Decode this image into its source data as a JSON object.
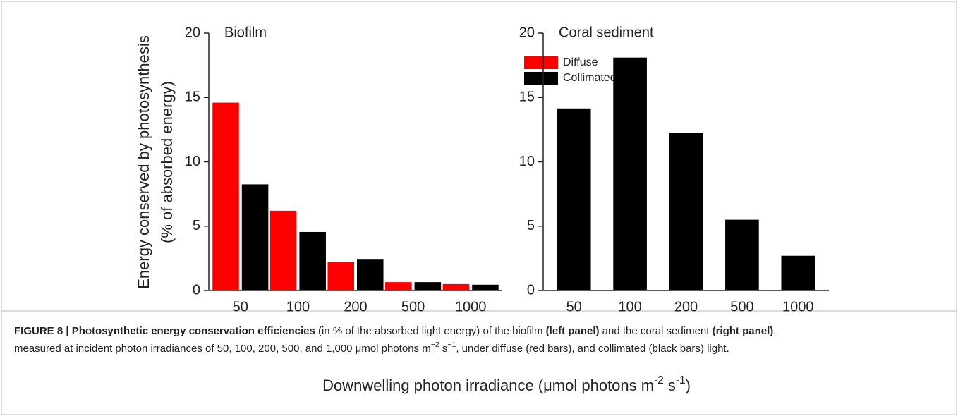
{
  "chart_data": [
    {
      "type": "bar",
      "title": "Biofilm",
      "ylabel": [
        "Energy conserved by photosynthesis",
        "(% of absorbed energy)"
      ],
      "categories": [
        "50",
        "100",
        "200",
        "500",
        "1000"
      ],
      "series": [
        {
          "name": "Diffuse",
          "color": "#ff0000",
          "values": [
            14.6,
            6.2,
            2.2,
            0.65,
            0.5
          ]
        },
        {
          "name": "Collimated",
          "color": "#000000",
          "values": [
            8.25,
            4.55,
            2.4,
            0.65,
            0.45
          ]
        }
      ],
      "ylim": [
        0,
        20
      ],
      "yticks": [
        0,
        5,
        10,
        15,
        20
      ],
      "legend": "upper right"
    },
    {
      "type": "bar",
      "title": "Coral sediment",
      "categories": [
        "50",
        "100",
        "200",
        "500",
        "1000"
      ],
      "series": [
        {
          "color": "#000000",
          "values": [
            14.15,
            18.1,
            12.25,
            5.5,
            2.7
          ]
        }
      ],
      "ylim": [
        0,
        20
      ],
      "yticks": [
        0,
        5,
        10,
        15,
        20
      ]
    }
  ],
  "xlabel": [
    {
      "text": "Downwelling photon irradiance (μmol photons m"
    },
    {
      "text": "-2",
      "sup": true
    },
    {
      "text": " s"
    },
    {
      "text": "-1",
      "sup": true
    },
    {
      "text": ")"
    }
  ],
  "caption": [
    [
      {
        "text": "FIGURE 8 | Photosynthetic energy conservation efficiencies",
        "bold": true
      },
      {
        "text": " (in % of the absorbed light energy) of the biofilm "
      },
      {
        "text": "(left panel)",
        "bold": true
      },
      {
        "text": " and the coral sediment "
      },
      {
        "text": "(right panel)",
        "bold": true
      },
      {
        "text": ","
      }
    ],
    [
      {
        "text": "measured at incident photon irradiances of 50, 100, 200, 500, and 1,000 μmol photons m"
      },
      {
        "text": "−2",
        "sup": true
      },
      {
        "text": " s"
      },
      {
        "text": "−1",
        "sup": true
      },
      {
        "text": ", under diffuse (red bars), and collimated (black bars) light."
      }
    ]
  ]
}
